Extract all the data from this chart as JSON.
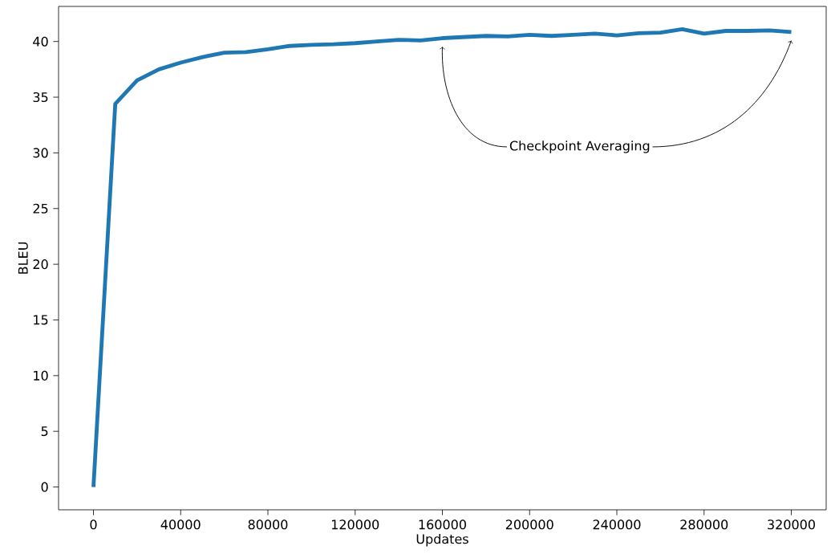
{
  "chart_data": {
    "type": "line",
    "xlabel": "Updates",
    "ylabel": "BLEU",
    "xlim": [
      -16000,
      336000
    ],
    "ylim": [
      -2.05,
      43.15
    ],
    "xticks": [
      0,
      40000,
      80000,
      120000,
      160000,
      200000,
      240000,
      280000,
      320000
    ],
    "yticks": [
      0,
      5,
      10,
      15,
      20,
      25,
      30,
      35,
      40
    ],
    "x": [
      0,
      10000,
      20000,
      30000,
      40000,
      50000,
      60000,
      70000,
      80000,
      90000,
      100000,
      110000,
      120000,
      130000,
      140000,
      150000,
      160000,
      170000,
      180000,
      190000,
      200000,
      210000,
      220000,
      230000,
      240000,
      250000,
      260000,
      270000,
      280000,
      290000,
      300000,
      310000,
      320000
    ],
    "series": [
      {
        "color": "#1f77b4",
        "values": [
          0,
          34.4,
          36.5,
          37.5,
          38.1,
          38.6,
          39.0,
          39.05,
          39.3,
          39.6,
          39.7,
          39.75,
          39.85,
          40.0,
          40.15,
          40.1,
          40.3,
          40.4,
          40.5,
          40.45,
          40.6,
          40.5,
          40.6,
          40.7,
          40.55,
          40.75,
          40.8,
          41.1,
          40.7,
          40.95,
          40.95,
          41.0,
          40.85
        ]
      }
    ],
    "annotations": [
      "Checkpoint Averaging"
    ]
  }
}
